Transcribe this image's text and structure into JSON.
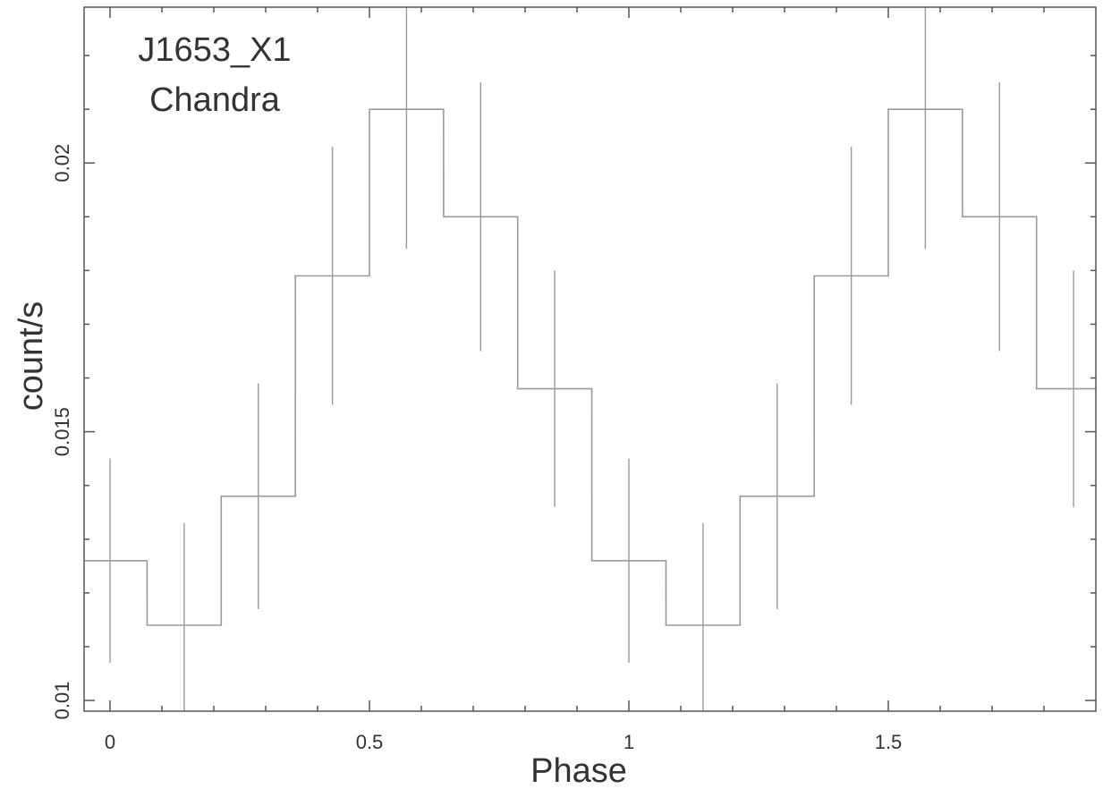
{
  "chart_data": {
    "type": "line",
    "title": "",
    "xlabel": "Phase",
    "ylabel": "count/s",
    "xlim": [
      -0.05,
      1.9
    ],
    "ylim": [
      0.0098,
      0.0229
    ],
    "x_ticks": [
      0,
      0.5,
      1,
      1.5
    ],
    "x_tick_labels": [
      "0",
      "0.5",
      "1",
      "1.5"
    ],
    "y_ticks": [
      0.01,
      0.015,
      0.02
    ],
    "y_tick_labels": [
      "0.01",
      "0.015",
      "0.02"
    ],
    "y_minor_ticks": [
      0.011,
      0.012,
      0.013,
      0.014,
      0.016,
      0.017,
      0.018,
      0.019,
      0.021,
      0.022
    ],
    "grid": false,
    "annotations": [
      "J1653_X1",
      "Chandra"
    ],
    "series": [
      {
        "step_style": "histogram",
        "bin_half_width": 0.0714,
        "x": [
          0.0,
          0.1429,
          0.2857,
          0.4286,
          0.5714,
          0.7143,
          0.8571,
          1.0,
          1.1429,
          1.2857,
          1.4286,
          1.5714,
          1.7143,
          1.8571
        ],
        "y": [
          0.0126,
          0.0114,
          0.0138,
          0.0179,
          0.021,
          0.019,
          0.0158,
          0.0126,
          0.0114,
          0.0138,
          0.0179,
          0.021,
          0.019,
          0.0158
        ],
        "yerr": [
          0.0019,
          0.0019,
          0.0021,
          0.0024,
          0.0026,
          0.0025,
          0.0022,
          0.0019,
          0.0019,
          0.0021,
          0.0024,
          0.0026,
          0.0025,
          0.0022
        ]
      }
    ]
  }
}
